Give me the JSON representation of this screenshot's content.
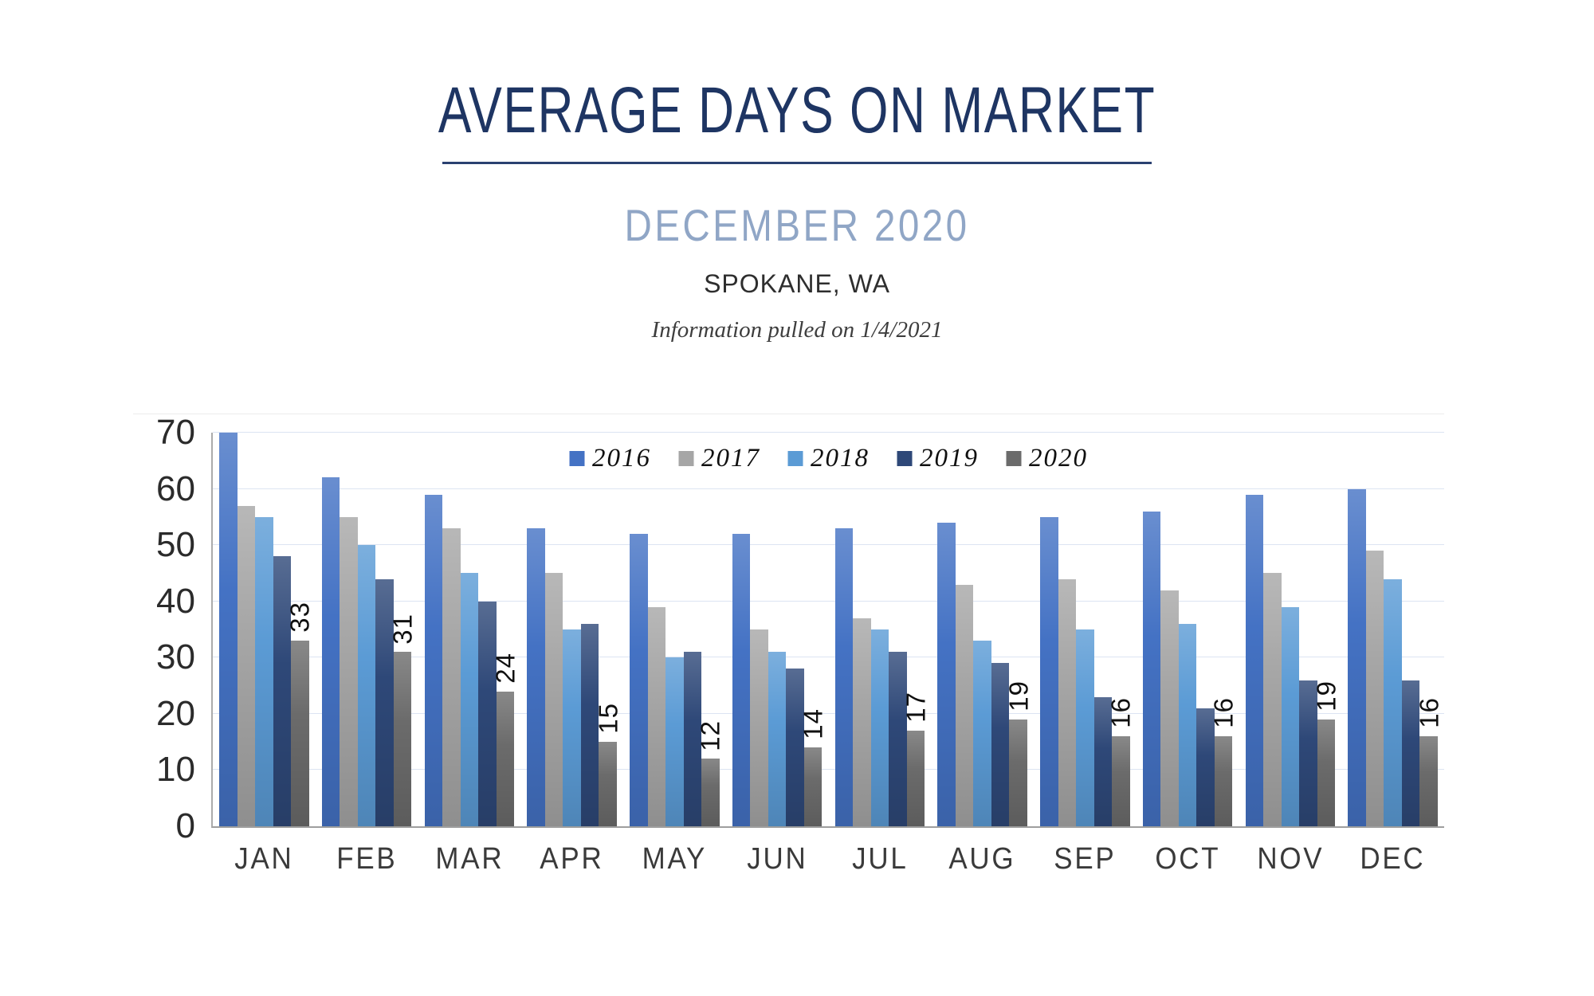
{
  "header": {
    "title": "AVERAGE DAYS ON MARKET",
    "subtitle": "DECEMBER 2020",
    "location": "SPOKANE, WA",
    "note": "Information pulled on 1/4/2021"
  },
  "colors": {
    "title": "#1E3563",
    "subtitle": "#90A6C6",
    "divider": "#2A4070",
    "gridline": "#DCE4F2"
  },
  "chart_data": {
    "type": "bar",
    "title": "AVERAGE DAYS ON MARKET",
    "xlabel": "",
    "ylabel": "",
    "categories": [
      "JAN",
      "FEB",
      "MAR",
      "APR",
      "MAY",
      "JUN",
      "JUL",
      "AUG",
      "SEP",
      "OCT",
      "NOV",
      "DEC"
    ],
    "series": [
      {
        "name": "2016",
        "color": "#4472C4",
        "values": [
          70,
          62,
          59,
          53,
          52,
          52,
          53,
          54,
          55,
          56,
          59,
          60
        ]
      },
      {
        "name": "2017",
        "color": "#A6A6A6",
        "values": [
          57,
          55,
          53,
          45,
          39,
          35,
          37,
          43,
          44,
          42,
          45,
          49
        ]
      },
      {
        "name": "2018",
        "color": "#5B9BD5",
        "values": [
          55,
          50,
          45,
          35,
          30,
          31,
          35,
          33,
          35,
          36,
          39,
          44
        ]
      },
      {
        "name": "2019",
        "color": "#2E4878",
        "values": [
          48,
          44,
          40,
          36,
          31,
          28,
          31,
          29,
          23,
          21,
          26,
          26
        ]
      },
      {
        "name": "2020",
        "color": "#6B6B6B",
        "values": [
          33,
          31,
          24,
          15,
          12,
          14,
          17,
          19,
          16,
          16,
          19,
          16
        ],
        "labels_shown": true
      }
    ],
    "data_label_series": "2020",
    "data_labels": [
      33,
      31,
      24,
      15,
      12,
      14,
      17,
      19,
      16,
      16,
      19,
      16
    ],
    "ylim": [
      0,
      70
    ],
    "yticks": [
      0,
      10,
      20,
      30,
      40,
      50,
      60,
      70
    ],
    "grid": "horizontal",
    "legend_position": "inside-top-center"
  }
}
